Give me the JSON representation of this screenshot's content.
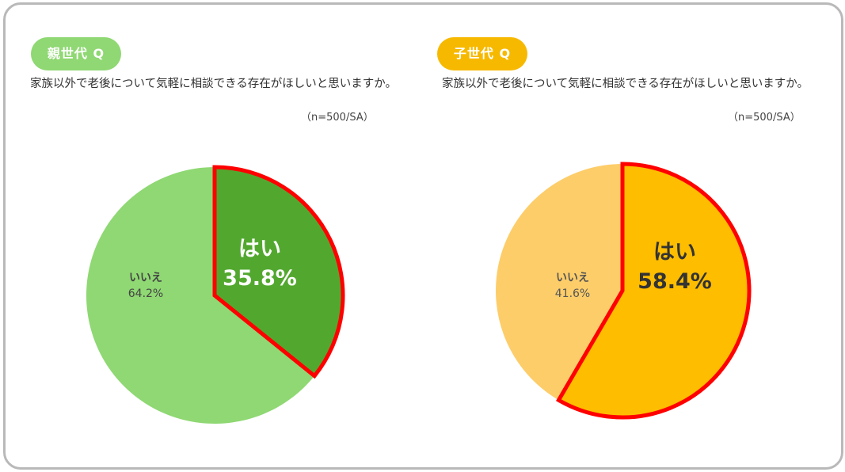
{
  "panels": [
    {
      "badge": "親世代 Q",
      "question": "家族以外で老後について気軽に相談できる存在がほしいと思いますか。",
      "sample_note": "（n=500/SA）"
    },
    {
      "badge": "子世代 Q",
      "question": "家族以外で老後について気軽に相談できる存在がほしいと思いますか。",
      "sample_note": "（n=500/SA）"
    }
  ],
  "chart_data": [
    {
      "type": "pie",
      "title": "",
      "slices": [
        {
          "label": "はい",
          "value": 35.8,
          "display": "35.8%",
          "color": "#52a82f",
          "highlight": true
        },
        {
          "label": "いいえ",
          "value": 64.2,
          "display": "64.2%",
          "color": "#8fd873",
          "highlight": false
        }
      ],
      "highlight_stroke": "#ff0000",
      "start": "12 o'clock, clockwise"
    },
    {
      "type": "pie",
      "title": "",
      "slices": [
        {
          "label": "はい",
          "value": 58.4,
          "display": "58.4%",
          "color": "#ffbd00",
          "highlight": true
        },
        {
          "label": "いいえ",
          "value": 41.6,
          "display": "41.6%",
          "color": "#fdcd6a",
          "highlight": false
        }
      ],
      "highlight_stroke": "#ff0000",
      "start": "12 o'clock, clockwise"
    }
  ]
}
